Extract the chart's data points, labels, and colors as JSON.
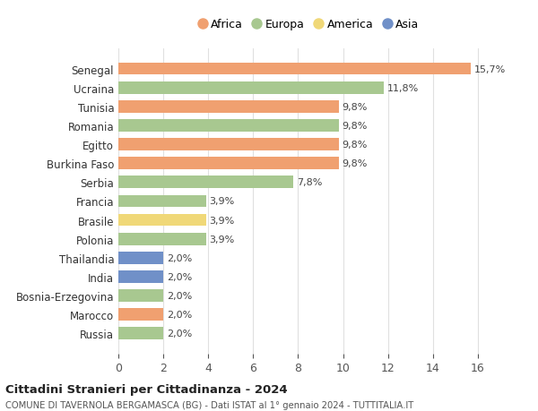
{
  "countries": [
    "Russia",
    "Marocco",
    "Bosnia-Erzegovina",
    "India",
    "Thailandia",
    "Polonia",
    "Brasile",
    "Francia",
    "Serbia",
    "Burkina Faso",
    "Egitto",
    "Romania",
    "Tunisia",
    "Ucraina",
    "Senegal"
  ],
  "values": [
    2.0,
    2.0,
    2.0,
    2.0,
    2.0,
    3.9,
    3.9,
    3.9,
    7.8,
    9.8,
    9.8,
    9.8,
    9.8,
    11.8,
    15.7
  ],
  "labels": [
    "2,0%",
    "2,0%",
    "2,0%",
    "2,0%",
    "2,0%",
    "3,9%",
    "3,9%",
    "3,9%",
    "7,8%",
    "9,8%",
    "9,8%",
    "9,8%",
    "9,8%",
    "11,8%",
    "15,7%"
  ],
  "continents": [
    "Europa",
    "Africa",
    "Europa",
    "Asia",
    "Asia",
    "Europa",
    "America",
    "Europa",
    "Europa",
    "Africa",
    "Africa",
    "Europa",
    "Africa",
    "Europa",
    "Africa"
  ],
  "colors": {
    "Africa": "#F0A070",
    "Europa": "#A8C890",
    "America": "#F0D878",
    "Asia": "#7090C8"
  },
  "legend_order": [
    "Africa",
    "Europa",
    "America",
    "Asia"
  ],
  "title1": "Cittadini Stranieri per Cittadinanza - 2024",
  "title2": "COMUNE DI TAVERNOLA BERGAMASCA (BG) - Dati ISTAT al 1° gennaio 2024 - TUTTITALIA.IT",
  "xlim": [
    0,
    17
  ],
  "xticks": [
    0,
    2,
    4,
    6,
    8,
    10,
    12,
    14,
    16
  ],
  "background_color": "#ffffff",
  "grid_color": "#e0e0e0"
}
